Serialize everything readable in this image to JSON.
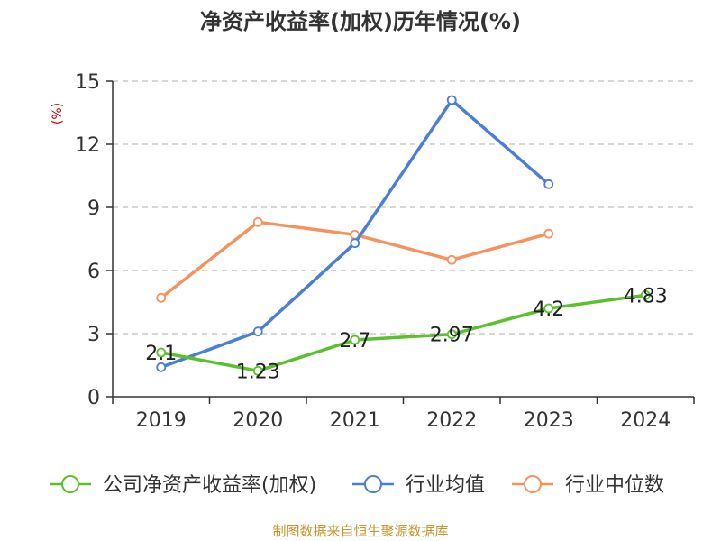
{
  "chart_data": {
    "type": "line",
    "title": "净资产收益率(加权)历年情况(%)",
    "ylabel": "(%)",
    "xlabel": "",
    "ylim": [
      0,
      15
    ],
    "yticks": [
      0,
      3,
      6,
      9,
      12,
      15
    ],
    "categories": [
      "2019",
      "2020",
      "2021",
      "2022",
      "2023",
      "2024"
    ],
    "grid": true,
    "legend": "bottom",
    "series": [
      {
        "name": "公司净资产收益率(加权)",
        "color": "#5ac12d",
        "values": [
          2.1,
          1.23,
          2.7,
          2.97,
          4.2,
          4.83
        ],
        "labels": [
          "2.1",
          "1.23",
          "2.7",
          "2.97",
          "4.2",
          "4.83"
        ]
      },
      {
        "name": "行业均值",
        "color": "#4a7fd4",
        "values": [
          1.4,
          3.1,
          7.3,
          14.1,
          10.1,
          null
        ]
      },
      {
        "name": "行业中位数",
        "color": "#f5925e",
        "values": [
          4.7,
          8.3,
          7.7,
          6.5,
          7.75,
          null
        ]
      }
    ],
    "source": "制图数据来自恒生聚源数据库"
  }
}
